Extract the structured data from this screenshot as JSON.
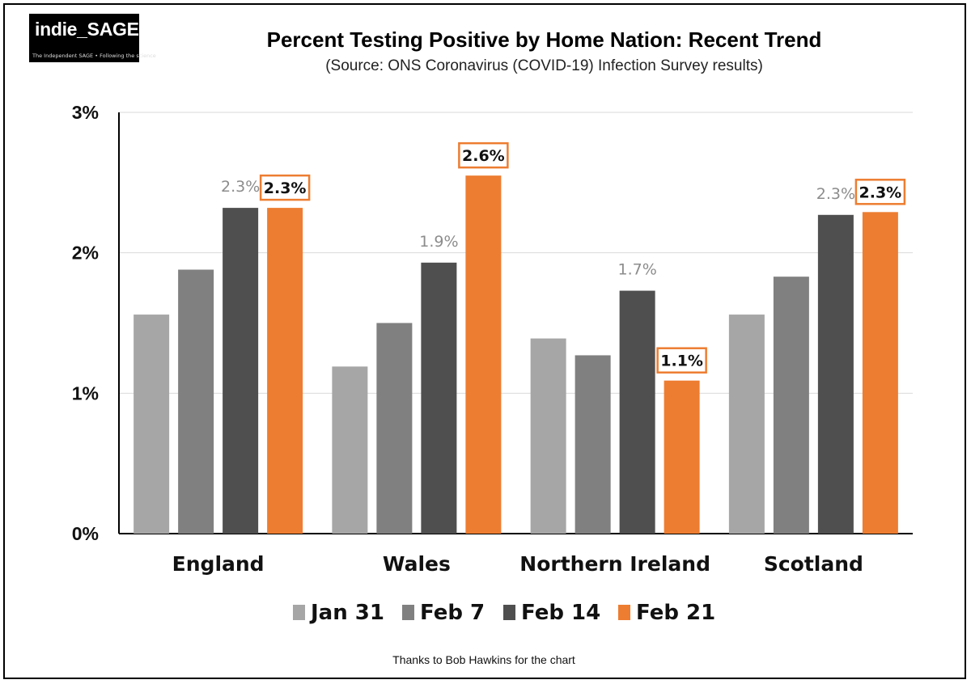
{
  "logo": {
    "text": "indie_SAGE",
    "tagline": "The Independent SAGE • Following the science"
  },
  "footer": "Thanks to Bob Hawkins for the chart",
  "colors": {
    "jan31": "#a6a6a6",
    "feb7": "#808080",
    "feb14": "#4f4f4f",
    "feb21": "#ed7d31",
    "grid": "#d9d9d9",
    "axis": "#000000"
  },
  "chart_data": {
    "type": "bar",
    "title": "Percent Testing Positive by Home Nation: Recent Trend",
    "subtitle": "(Source: ONS Coronavirus (COVID-19) Infection Survey results)",
    "categories": [
      "England",
      "Wales",
      "Northern Ireland",
      "Scotland"
    ],
    "series": [
      {
        "name": "Jan 31",
        "values": [
          1.56,
          1.19,
          1.39,
          1.56
        ]
      },
      {
        "name": "Feb 7",
        "values": [
          1.88,
          1.5,
          1.27,
          1.83
        ]
      },
      {
        "name": "Feb 14",
        "values": [
          2.32,
          1.93,
          1.73,
          2.27
        ]
      },
      {
        "name": "Feb 21",
        "values": [
          2.32,
          2.55,
          1.09,
          2.29
        ]
      }
    ],
    "data_labels": [
      {
        "category": "England",
        "series": "Feb 14",
        "text": "2.3%",
        "style": "grey"
      },
      {
        "category": "England",
        "series": "Feb 21",
        "text": "2.3%",
        "style": "boxed"
      },
      {
        "category": "Wales",
        "series": "Feb 14",
        "text": "1.9%",
        "style": "grey"
      },
      {
        "category": "Wales",
        "series": "Feb 21",
        "text": "2.6%",
        "style": "boxed"
      },
      {
        "category": "Northern Ireland",
        "series": "Feb 14",
        "text": "1.7%",
        "style": "grey"
      },
      {
        "category": "Northern Ireland",
        "series": "Feb 21",
        "text": "1.1%",
        "style": "boxed"
      },
      {
        "category": "Scotland",
        "series": "Feb 14",
        "text": "2.3%",
        "style": "grey"
      },
      {
        "category": "Scotland",
        "series": "Feb 21",
        "text": "2.3%",
        "style": "boxed"
      }
    ],
    "yticks": [
      0,
      1,
      2,
      3
    ],
    "ytick_labels": [
      "0%",
      "1%",
      "2%",
      "3%"
    ],
    "ylim": [
      0,
      3
    ],
    "xlabel": "",
    "ylabel": "",
    "grid": true,
    "legend_position": "bottom"
  }
}
